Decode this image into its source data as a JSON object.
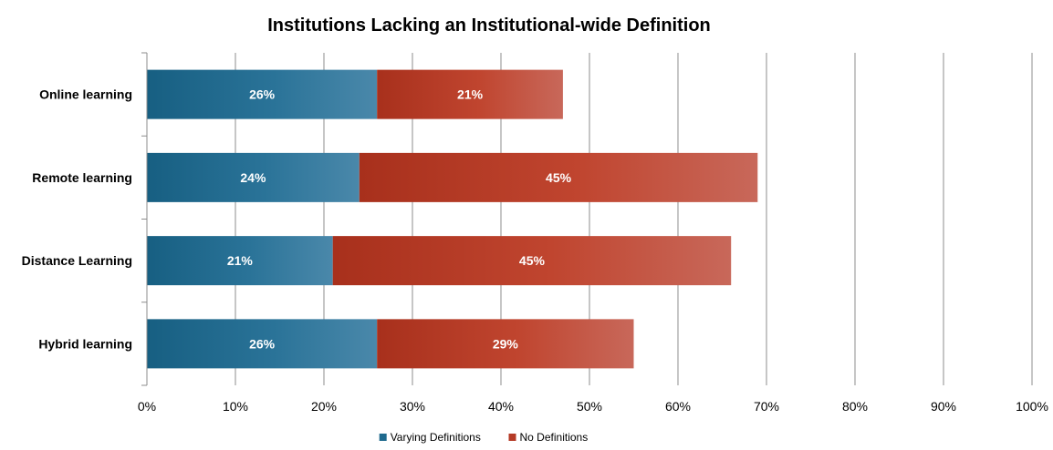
{
  "chart_data": {
    "type": "bar",
    "orientation": "horizontal",
    "stacked": true,
    "title": "Institutions Lacking an Institutional-wide Definition",
    "categories": [
      "Online learning",
      "Remote learning",
      "Distance Learning",
      "Hybrid learning"
    ],
    "series": [
      {
        "name": "Varying Definitions",
        "values": [
          26,
          24,
          21,
          26
        ],
        "color": "#1f6a8e",
        "labels": [
          "26%",
          "24%",
          "21%",
          "26%"
        ]
      },
      {
        "name": "No Definitions",
        "values": [
          21,
          45,
          45,
          29
        ],
        "color": "#b53a26",
        "labels": [
          "21%",
          "45%",
          "45%",
          "29%"
        ]
      }
    ],
    "xlim": [
      0,
      100
    ],
    "x_ticks": [
      "0%",
      "10%",
      "20%",
      "30%",
      "40%",
      "50%",
      "60%",
      "70%",
      "80%",
      "90%",
      "100%"
    ],
    "grid": true,
    "legend_position": "bottom"
  }
}
